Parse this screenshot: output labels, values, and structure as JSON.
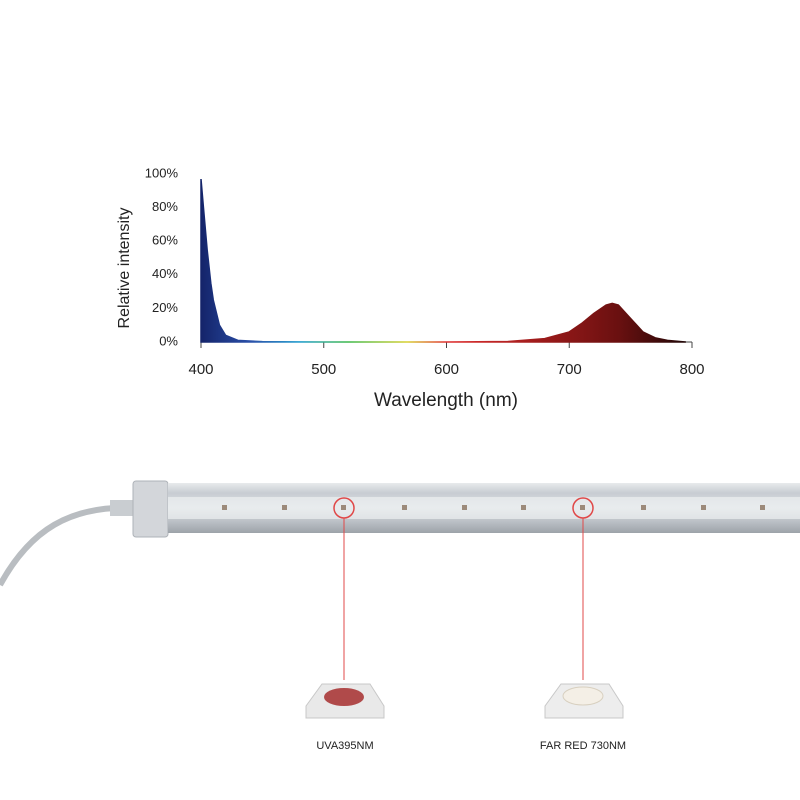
{
  "chart_data": {
    "type": "area",
    "ylabel": "Relative intensity",
    "xlabel": "Wavelength (nm)",
    "x": [
      400,
      402,
      405,
      408,
      410,
      415,
      420,
      430,
      450,
      500,
      600,
      650,
      680,
      700,
      710,
      720,
      730,
      735,
      740,
      750,
      760,
      770,
      780,
      790,
      795
    ],
    "series": [
      {
        "values": [
          97,
          80,
          55,
          35,
          25,
          10,
          4,
          1,
          0.2,
          0,
          0,
          0.3,
          2,
          6,
          11,
          17,
          22,
          23,
          22,
          14,
          6,
          2.5,
          1,
          0.3,
          0
        ]
      }
    ],
    "xlim": [
      400,
      800
    ],
    "xticks": [
      400,
      500,
      600,
      700,
      800
    ],
    "ylim": [
      0,
      100
    ],
    "yticks": [
      {
        "value": 0,
        "label": "0%"
      },
      {
        "value": 20,
        "label": "20%"
      },
      {
        "value": 40,
        "label": "40%"
      },
      {
        "value": 60,
        "label": "60%"
      },
      {
        "value": 80,
        "label": "80%"
      },
      {
        "value": 100,
        "label": "100%"
      }
    ]
  },
  "product": {
    "leds": [
      "UVA395NM",
      "FAR RED 730NM"
    ]
  }
}
